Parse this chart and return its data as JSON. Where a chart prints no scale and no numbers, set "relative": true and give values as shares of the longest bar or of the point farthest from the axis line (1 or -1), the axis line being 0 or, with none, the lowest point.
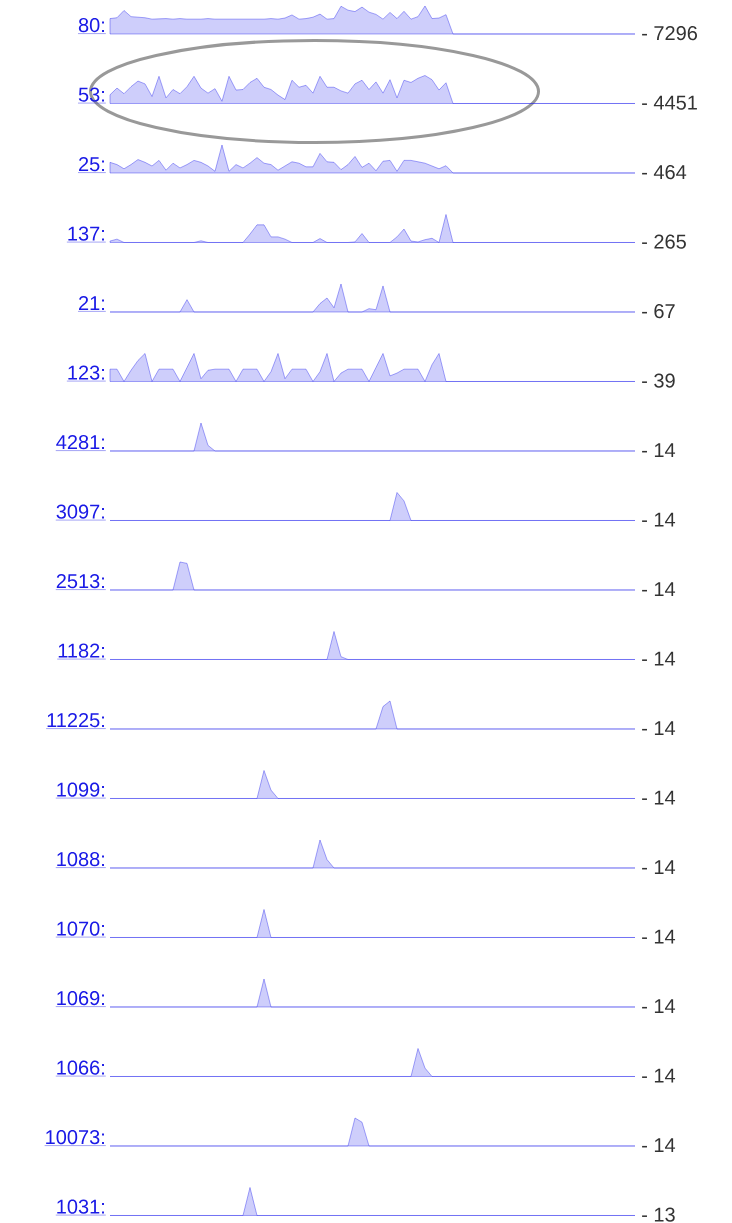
{
  "chart_data": [
    {
      "type": "area",
      "relative": true,
      "title": "80:",
      "annotations": [
        "- 7296"
      ],
      "color": "#2222ee",
      "categories": [
        null,
        null,
        null,
        null,
        null,
        null,
        null,
        null,
        null,
        null,
        null,
        null,
        null,
        null,
        null,
        null,
        null,
        null,
        null,
        null,
        null,
        null,
        null,
        null,
        null,
        null,
        null,
        null,
        null,
        null,
        null,
        null,
        null,
        null,
        null,
        null,
        null,
        null,
        null,
        null,
        null,
        null,
        null,
        null,
        null,
        null,
        null,
        null,
        null,
        null,
        null,
        null,
        null,
        null,
        null,
        null,
        null,
        null,
        null,
        null,
        null,
        null,
        null,
        null,
        null,
        null,
        null,
        null,
        null,
        null,
        null,
        null,
        null,
        null,
        null,
        null
      ],
      "values": [
        0.55,
        0.58,
        0.84,
        0.62,
        0.6,
        0.58,
        0.53,
        0.54,
        0.55,
        0.53,
        0.55,
        0.53,
        0.53,
        0.53,
        0.55,
        0.53,
        0.53,
        0.53,
        0.53,
        0.53,
        0.53,
        0.53,
        0.53,
        0.55,
        0.53,
        0.57,
        0.68,
        0.53,
        0.55,
        0.6,
        0.71,
        0.53,
        0.55,
        0.99,
        0.85,
        0.8,
        0.96,
        0.78,
        0.7,
        0.53,
        0.77,
        0.55,
        0.81,
        0.53,
        0.62,
        1,
        0.55,
        0.57,
        0.69,
        0,
        0,
        0,
        0,
        0,
        0,
        0,
        0,
        0,
        0,
        0,
        0,
        0,
        0,
        0,
        0,
        0,
        0,
        0,
        0,
        0,
        0,
        0,
        0,
        0,
        0,
        0
      ]
    },
    {
      "type": "area",
      "relative": true,
      "title": "53:",
      "annotations": [
        "- 4451"
      ],
      "color": "#2222ee",
      "categories": [
        null,
        null,
        null,
        null,
        null,
        null,
        null,
        null,
        null,
        null,
        null,
        null,
        null,
        null,
        null,
        null,
        null,
        null,
        null,
        null,
        null,
        null,
        null,
        null,
        null,
        null,
        null,
        null,
        null,
        null,
        null,
        null,
        null,
        null,
        null,
        null,
        null,
        null,
        null,
        null,
        null,
        null,
        null,
        null,
        null,
        null,
        null,
        null,
        null,
        null,
        null,
        null,
        null,
        null,
        null,
        null,
        null,
        null,
        null,
        null,
        null,
        null,
        null,
        null,
        null,
        null,
        null,
        null,
        null,
        null,
        null,
        null,
        null,
        null,
        null,
        null
      ],
      "values": [
        0.31,
        0.55,
        0.35,
        0.6,
        0.8,
        0.7,
        0.25,
        0.97,
        0.2,
        0.5,
        0.35,
        0.6,
        0.97,
        0.55,
        0.37,
        0.53,
        0.08,
        0.97,
        0.48,
        0.5,
        0.75,
        0.9,
        0.58,
        0.5,
        0.3,
        0.14,
        0.83,
        0.58,
        0.65,
        0.37,
        0.97,
        0.58,
        0.58,
        0.45,
        0.37,
        0.7,
        0.83,
        0.5,
        0.77,
        0.37,
        0.85,
        0.2,
        0.83,
        0.75,
        0.9,
        1,
        0.85,
        0.48,
        0.74,
        0,
        0,
        0,
        0,
        0,
        0,
        0,
        0,
        0,
        0,
        0,
        0,
        0,
        0,
        0,
        0,
        0,
        0,
        0,
        0,
        0,
        0,
        0,
        0,
        0,
        0,
        0
      ]
    },
    {
      "type": "area",
      "relative": true,
      "title": "25:",
      "annotations": [
        "- 464"
      ],
      "color": "#2222ee",
      "categories": [
        null,
        null,
        null,
        null,
        null,
        null,
        null,
        null,
        null,
        null,
        null,
        null,
        null,
        null,
        null,
        null,
        null,
        null,
        null,
        null,
        null,
        null,
        null,
        null,
        null,
        null,
        null,
        null,
        null,
        null,
        null,
        null,
        null,
        null,
        null,
        null,
        null,
        null,
        null,
        null,
        null,
        null,
        null,
        null,
        null,
        null,
        null,
        null,
        null,
        null,
        null,
        null,
        null,
        null,
        null,
        null,
        null,
        null,
        null,
        null,
        null,
        null,
        null,
        null,
        null,
        null,
        null,
        null,
        null,
        null,
        null,
        null,
        null,
        null,
        null,
        null
      ],
      "values": [
        0.38,
        0.3,
        0.15,
        0.3,
        0.48,
        0.38,
        0.25,
        0.45,
        0.1,
        0.35,
        0.18,
        0.3,
        0.45,
        0.38,
        0.25,
        0.06,
        1,
        0.06,
        0.3,
        0.18,
        0.35,
        0.55,
        0.35,
        0.3,
        0.1,
        0.25,
        0.4,
        0.35,
        0.22,
        0.22,
        0.7,
        0.4,
        0.38,
        0.12,
        0.3,
        0.59,
        0.2,
        0.35,
        0.08,
        0.42,
        0.45,
        0.06,
        0.45,
        0.45,
        0.4,
        0.35,
        0.25,
        0.15,
        0.26,
        0,
        0,
        0,
        0,
        0,
        0,
        0,
        0,
        0,
        0,
        0,
        0,
        0,
        0,
        0,
        0,
        0,
        0,
        0,
        0,
        0,
        0,
        0,
        0,
        0,
        0,
        0
      ]
    },
    {
      "type": "area",
      "relative": true,
      "title": "137:",
      "annotations": [
        "- 265"
      ],
      "color": "#2222ee",
      "categories": [
        null,
        null,
        null,
        null,
        null,
        null,
        null,
        null,
        null,
        null,
        null,
        null,
        null,
        null,
        null,
        null,
        null,
        null,
        null,
        null,
        null,
        null,
        null,
        null,
        null,
        null,
        null,
        null,
        null,
        null,
        null,
        null,
        null,
        null,
        null,
        null,
        null,
        null,
        null,
        null,
        null,
        null,
        null,
        null,
        null,
        null,
        null,
        null,
        null,
        null,
        null,
        null,
        null,
        null,
        null,
        null,
        null,
        null,
        null,
        null,
        null,
        null,
        null,
        null,
        null,
        null,
        null,
        null,
        null,
        null,
        null,
        null,
        null,
        null,
        null,
        null
      ],
      "values": [
        0.05,
        0.12,
        0,
        0,
        0,
        0,
        0,
        0,
        0,
        0,
        0,
        0,
        0,
        0.06,
        0,
        0,
        0,
        0,
        0,
        0,
        0.3,
        0.63,
        0.63,
        0.2,
        0.2,
        0.12,
        0,
        0,
        0,
        0,
        0.14,
        0,
        0,
        0,
        0,
        0.02,
        0.32,
        0,
        0,
        0,
        0,
        0.2,
        0.48,
        0.05,
        0.02,
        0.1,
        0.15,
        0,
        1,
        0,
        0,
        0,
        0,
        0,
        0,
        0,
        0,
        0,
        0,
        0,
        0,
        0,
        0,
        0,
        0,
        0,
        0,
        0,
        0,
        0,
        0,
        0,
        0,
        0,
        0,
        0
      ]
    },
    {
      "type": "area",
      "relative": true,
      "title": "21:",
      "annotations": [
        "- 67"
      ],
      "color": "#2222ee",
      "categories": [
        null,
        null,
        null,
        null,
        null,
        null,
        null,
        null,
        null,
        null,
        null,
        null,
        null,
        null,
        null,
        null,
        null,
        null,
        null,
        null,
        null,
        null,
        null,
        null,
        null,
        null,
        null,
        null,
        null,
        null,
        null,
        null,
        null,
        null,
        null,
        null,
        null,
        null,
        null,
        null,
        null,
        null,
        null,
        null,
        null,
        null,
        null,
        null,
        null,
        null,
        null,
        null,
        null,
        null,
        null,
        null,
        null,
        null,
        null,
        null,
        null,
        null,
        null,
        null,
        null,
        null,
        null,
        null,
        null,
        null,
        null,
        null,
        null,
        null,
        null,
        null
      ],
      "values": [
        0,
        0,
        0,
        0,
        0,
        0,
        0,
        0,
        0,
        0,
        0,
        0.44,
        0,
        0,
        0,
        0,
        0,
        0,
        0,
        0,
        0,
        0,
        0,
        0,
        0,
        0,
        0,
        0,
        0,
        0,
        0.3,
        0.5,
        0.15,
        1,
        0,
        0,
        0,
        0.12,
        0.08,
        0.93,
        0,
        0,
        0,
        0,
        0,
        0,
        0,
        0,
        0,
        0,
        0,
        0,
        0,
        0,
        0,
        0,
        0,
        0,
        0,
        0,
        0,
        0,
        0,
        0,
        0,
        0,
        0,
        0,
        0,
        0,
        0,
        0,
        0,
        0,
        0,
        0
      ]
    },
    {
      "type": "area",
      "relative": true,
      "title": "123:",
      "annotations": [
        "- 39"
      ],
      "color": "#2222ee",
      "categories": [
        null,
        null,
        null,
        null,
        null,
        null,
        null,
        null,
        null,
        null,
        null,
        null,
        null,
        null,
        null,
        null,
        null,
        null,
        null,
        null,
        null,
        null,
        null,
        null,
        null,
        null,
        null,
        null,
        null,
        null,
        null,
        null,
        null,
        null,
        null,
        null,
        null,
        null,
        null,
        null,
        null,
        null,
        null,
        null,
        null,
        null,
        null,
        null,
        null,
        null,
        null,
        null,
        null,
        null,
        null,
        null,
        null,
        null,
        null,
        null,
        null,
        null,
        null,
        null,
        null,
        null,
        null,
        null,
        null,
        null,
        null,
        null,
        null,
        null,
        null,
        null
      ],
      "values": [
        0.44,
        0.44,
        0,
        0.4,
        0.75,
        1,
        0,
        0.44,
        0.44,
        0.44,
        0,
        0.5,
        1,
        0.1,
        0.4,
        0.44,
        0.44,
        0.44,
        0,
        0.44,
        0.44,
        0.44,
        0,
        0.35,
        1,
        0.1,
        0.44,
        0.44,
        0.44,
        0,
        0.35,
        1,
        0,
        0.3,
        0.44,
        0.44,
        0.44,
        0,
        0.5,
        1,
        0.2,
        0.3,
        0.44,
        0.44,
        0.44,
        0,
        0.6,
        1,
        0,
        0,
        0,
        0,
        0,
        0,
        0,
        0,
        0,
        0,
        0,
        0,
        0,
        0,
        0,
        0,
        0,
        0,
        0,
        0,
        0,
        0,
        0,
        0,
        0,
        0,
        0,
        0
      ]
    },
    {
      "type": "area",
      "relative": true,
      "title": "4281:",
      "annotations": [
        "- 14"
      ],
      "color": "#2222ee",
      "categories": [
        null,
        null,
        null,
        null,
        null,
        null,
        null,
        null,
        null,
        null,
        null,
        null,
        null,
        null,
        null,
        null,
        null,
        null,
        null,
        null,
        null,
        null,
        null,
        null,
        null,
        null,
        null,
        null,
        null,
        null,
        null,
        null,
        null,
        null,
        null,
        null,
        null,
        null,
        null,
        null,
        null,
        null,
        null,
        null,
        null,
        null,
        null,
        null,
        null,
        null,
        null,
        null,
        null,
        null,
        null,
        null,
        null,
        null,
        null,
        null,
        null,
        null,
        null,
        null,
        null,
        null,
        null,
        null,
        null,
        null,
        null,
        null,
        null,
        null,
        null,
        null
      ],
      "values": [
        0,
        0,
        0,
        0,
        0,
        0,
        0,
        0,
        0,
        0,
        0,
        0,
        0,
        1,
        0.2,
        0,
        0,
        0,
        0,
        0,
        0,
        0,
        0,
        0,
        0,
        0,
        0,
        0,
        0,
        0,
        0,
        0,
        0,
        0,
        0,
        0,
        0,
        0,
        0,
        0,
        0,
        0,
        0,
        0,
        0,
        0,
        0,
        0,
        0,
        0,
        0,
        0,
        0,
        0,
        0,
        0,
        0,
        0,
        0,
        0,
        0,
        0,
        0,
        0,
        0,
        0,
        0,
        0,
        0,
        0,
        0,
        0,
        0,
        0,
        0,
        0
      ]
    },
    {
      "type": "area",
      "relative": true,
      "title": "3097:",
      "annotations": [
        "- 14"
      ],
      "color": "#2222ee",
      "categories": [
        null,
        null,
        null,
        null,
        null,
        null,
        null,
        null,
        null,
        null,
        null,
        null,
        null,
        null,
        null,
        null,
        null,
        null,
        null,
        null,
        null,
        null,
        null,
        null,
        null,
        null,
        null,
        null,
        null,
        null,
        null,
        null,
        null,
        null,
        null,
        null,
        null,
        null,
        null,
        null,
        null,
        null,
        null,
        null,
        null,
        null,
        null,
        null,
        null,
        null,
        null,
        null,
        null,
        null,
        null,
        null,
        null,
        null,
        null,
        null,
        null,
        null,
        null,
        null,
        null,
        null,
        null,
        null,
        null,
        null,
        null,
        null,
        null,
        null,
        null,
        null
      ],
      "values": [
        0,
        0,
        0,
        0,
        0,
        0,
        0,
        0,
        0,
        0,
        0,
        0,
        0,
        0,
        0,
        0,
        0,
        0,
        0,
        0,
        0,
        0,
        0,
        0,
        0,
        0,
        0,
        0,
        0,
        0,
        0,
        0,
        0,
        0,
        0,
        0,
        0,
        0,
        0,
        0,
        0,
        1,
        0.7,
        0,
        0,
        0,
        0,
        0,
        0,
        0,
        0,
        0,
        0,
        0,
        0,
        0,
        0,
        0,
        0,
        0,
        0,
        0,
        0,
        0,
        0,
        0,
        0,
        0,
        0,
        0,
        0,
        0,
        0,
        0,
        0,
        0
      ]
    },
    {
      "type": "area",
      "relative": true,
      "title": "2513:",
      "annotations": [
        "- 14"
      ],
      "color": "#2222ee",
      "categories": [
        null,
        null,
        null,
        null,
        null,
        null,
        null,
        null,
        null,
        null,
        null,
        null,
        null,
        null,
        null,
        null,
        null,
        null,
        null,
        null,
        null,
        null,
        null,
        null,
        null,
        null,
        null,
        null,
        null,
        null,
        null,
        null,
        null,
        null,
        null,
        null,
        null,
        null,
        null,
        null,
        null,
        null,
        null,
        null,
        null,
        null,
        null,
        null,
        null,
        null,
        null,
        null,
        null,
        null,
        null,
        null,
        null,
        null,
        null,
        null,
        null,
        null,
        null,
        null,
        null,
        null,
        null,
        null,
        null,
        null,
        null,
        null,
        null,
        null,
        null,
        null
      ],
      "values": [
        0,
        0,
        0,
        0,
        0,
        0,
        0,
        0,
        0,
        0,
        1,
        0.95,
        0,
        0,
        0,
        0,
        0,
        0,
        0,
        0,
        0,
        0,
        0,
        0,
        0,
        0,
        0,
        0,
        0,
        0,
        0,
        0,
        0,
        0,
        0,
        0,
        0,
        0,
        0,
        0,
        0,
        0,
        0,
        0,
        0,
        0,
        0,
        0,
        0,
        0,
        0,
        0,
        0,
        0,
        0,
        0,
        0,
        0,
        0,
        0,
        0,
        0,
        0,
        0,
        0,
        0,
        0,
        0,
        0,
        0,
        0,
        0,
        0,
        0,
        0,
        0
      ]
    },
    {
      "type": "area",
      "relative": true,
      "title": "1182:",
      "annotations": [
        "- 14"
      ],
      "color": "#2222ee",
      "categories": [
        null,
        null,
        null,
        null,
        null,
        null,
        null,
        null,
        null,
        null,
        null,
        null,
        null,
        null,
        null,
        null,
        null,
        null,
        null,
        null,
        null,
        null,
        null,
        null,
        null,
        null,
        null,
        null,
        null,
        null,
        null,
        null,
        null,
        null,
        null,
        null,
        null,
        null,
        null,
        null,
        null,
        null,
        null,
        null,
        null,
        null,
        null,
        null,
        null,
        null,
        null,
        null,
        null,
        null,
        null,
        null,
        null,
        null,
        null,
        null,
        null,
        null,
        null,
        null,
        null,
        null,
        null,
        null,
        null,
        null,
        null,
        null,
        null,
        null,
        null,
        null
      ],
      "values": [
        0,
        0,
        0,
        0,
        0,
        0,
        0,
        0,
        0,
        0,
        0,
        0,
        0,
        0,
        0,
        0,
        0,
        0,
        0,
        0,
        0,
        0,
        0,
        0,
        0,
        0,
        0,
        0,
        0,
        0,
        0,
        0,
        1,
        0.1,
        0,
        0,
        0,
        0,
        0,
        0,
        0,
        0,
        0,
        0,
        0,
        0,
        0,
        0,
        0,
        0,
        0,
        0,
        0,
        0,
        0,
        0,
        0,
        0,
        0,
        0,
        0,
        0,
        0,
        0,
        0,
        0,
        0,
        0,
        0,
        0,
        0,
        0,
        0,
        0,
        0,
        0
      ]
    },
    {
      "type": "area",
      "relative": true,
      "title": "11225:",
      "annotations": [
        "- 14"
      ],
      "color": "#2222ee",
      "categories": [
        null,
        null,
        null,
        null,
        null,
        null,
        null,
        null,
        null,
        null,
        null,
        null,
        null,
        null,
        null,
        null,
        null,
        null,
        null,
        null,
        null,
        null,
        null,
        null,
        null,
        null,
        null,
        null,
        null,
        null,
        null,
        null,
        null,
        null,
        null,
        null,
        null,
        null,
        null,
        null,
        null,
        null,
        null,
        null,
        null,
        null,
        null,
        null,
        null,
        null,
        null,
        null,
        null,
        null,
        null,
        null,
        null,
        null,
        null,
        null,
        null,
        null,
        null,
        null,
        null,
        null,
        null,
        null,
        null,
        null,
        null,
        null,
        null,
        null,
        null,
        null
      ],
      "values": [
        0,
        0,
        0,
        0,
        0,
        0,
        0,
        0,
        0,
        0,
        0,
        0,
        0,
        0,
        0,
        0,
        0,
        0,
        0,
        0,
        0,
        0,
        0,
        0,
        0,
        0,
        0,
        0,
        0,
        0,
        0,
        0,
        0,
        0,
        0,
        0,
        0,
        0,
        0,
        0.8,
        1,
        0,
        0,
        0,
        0,
        0,
        0,
        0,
        0,
        0,
        0,
        0,
        0,
        0,
        0,
        0,
        0,
        0,
        0,
        0,
        0,
        0,
        0,
        0,
        0,
        0,
        0,
        0,
        0,
        0,
        0,
        0,
        0,
        0,
        0,
        0
      ]
    },
    {
      "type": "area",
      "relative": true,
      "title": "1099:",
      "annotations": [
        "- 14"
      ],
      "color": "#2222ee",
      "categories": [
        null,
        null,
        null,
        null,
        null,
        null,
        null,
        null,
        null,
        null,
        null,
        null,
        null,
        null,
        null,
        null,
        null,
        null,
        null,
        null,
        null,
        null,
        null,
        null,
        null,
        null,
        null,
        null,
        null,
        null,
        null,
        null,
        null,
        null,
        null,
        null,
        null,
        null,
        null,
        null,
        null,
        null,
        null,
        null,
        null,
        null,
        null,
        null,
        null,
        null,
        null,
        null,
        null,
        null,
        null,
        null,
        null,
        null,
        null,
        null,
        null,
        null,
        null,
        null,
        null,
        null,
        null,
        null,
        null,
        null,
        null,
        null,
        null,
        null,
        null,
        null
      ],
      "values": [
        0,
        0,
        0,
        0,
        0,
        0,
        0,
        0,
        0,
        0,
        0,
        0,
        0,
        0,
        0,
        0,
        0,
        0,
        0,
        0,
        0,
        0,
        1,
        0.3,
        0,
        0,
        0,
        0,
        0,
        0,
        0,
        0,
        0,
        0,
        0,
        0,
        0,
        0,
        0,
        0,
        0,
        0,
        0,
        0,
        0,
        0,
        0,
        0,
        0,
        0,
        0,
        0,
        0,
        0,
        0,
        0,
        0,
        0,
        0,
        0,
        0,
        0,
        0,
        0,
        0,
        0,
        0,
        0,
        0,
        0,
        0,
        0,
        0,
        0,
        0,
        0
      ]
    },
    {
      "type": "area",
      "relative": true,
      "title": "1088:",
      "annotations": [
        "- 14"
      ],
      "color": "#2222ee",
      "categories": [
        null,
        null,
        null,
        null,
        null,
        null,
        null,
        null,
        null,
        null,
        null,
        null,
        null,
        null,
        null,
        null,
        null,
        null,
        null,
        null,
        null,
        null,
        null,
        null,
        null,
        null,
        null,
        null,
        null,
        null,
        null,
        null,
        null,
        null,
        null,
        null,
        null,
        null,
        null,
        null,
        null,
        null,
        null,
        null,
        null,
        null,
        null,
        null,
        null,
        null,
        null,
        null,
        null,
        null,
        null,
        null,
        null,
        null,
        null,
        null,
        null,
        null,
        null,
        null,
        null,
        null,
        null,
        null,
        null,
        null,
        null,
        null,
        null,
        null,
        null,
        null
      ],
      "values": [
        0,
        0,
        0,
        0,
        0,
        0,
        0,
        0,
        0,
        0,
        0,
        0,
        0,
        0,
        0,
        0,
        0,
        0,
        0,
        0,
        0,
        0,
        0,
        0,
        0,
        0,
        0,
        0,
        0,
        0,
        1,
        0.3,
        0,
        0,
        0,
        0,
        0,
        0,
        0,
        0,
        0,
        0,
        0,
        0,
        0,
        0,
        0,
        0,
        0,
        0,
        0,
        0,
        0,
        0,
        0,
        0,
        0,
        0,
        0,
        0,
        0,
        0,
        0,
        0,
        0,
        0,
        0,
        0,
        0,
        0,
        0,
        0,
        0,
        0,
        0,
        0
      ]
    },
    {
      "type": "area",
      "relative": true,
      "title": "1070:",
      "annotations": [
        "- 14"
      ],
      "color": "#2222ee",
      "categories": [
        null,
        null,
        null,
        null,
        null,
        null,
        null,
        null,
        null,
        null,
        null,
        null,
        null,
        null,
        null,
        null,
        null,
        null,
        null,
        null,
        null,
        null,
        null,
        null,
        null,
        null,
        null,
        null,
        null,
        null,
        null,
        null,
        null,
        null,
        null,
        null,
        null,
        null,
        null,
        null,
        null,
        null,
        null,
        null,
        null,
        null,
        null,
        null,
        null,
        null,
        null,
        null,
        null,
        null,
        null,
        null,
        null,
        null,
        null,
        null,
        null,
        null,
        null,
        null,
        null,
        null,
        null,
        null,
        null,
        null,
        null,
        null,
        null,
        null,
        null,
        null
      ],
      "values": [
        0,
        0,
        0,
        0,
        0,
        0,
        0,
        0,
        0,
        0,
        0,
        0,
        0,
        0,
        0,
        0,
        0,
        0,
        0,
        0,
        0,
        0,
        1,
        0,
        0,
        0,
        0,
        0,
        0,
        0,
        0,
        0,
        0,
        0,
        0,
        0,
        0,
        0,
        0,
        0,
        0,
        0,
        0,
        0,
        0,
        0,
        0,
        0,
        0,
        0,
        0,
        0,
        0,
        0,
        0,
        0,
        0,
        0,
        0,
        0,
        0,
        0,
        0,
        0,
        0,
        0,
        0,
        0,
        0,
        0,
        0,
        0,
        0,
        0,
        0,
        0
      ]
    },
    {
      "type": "area",
      "relative": true,
      "title": "1069:",
      "annotations": [
        "- 14"
      ],
      "color": "#2222ee",
      "categories": [
        null,
        null,
        null,
        null,
        null,
        null,
        null,
        null,
        null,
        null,
        null,
        null,
        null,
        null,
        null,
        null,
        null,
        null,
        null,
        null,
        null,
        null,
        null,
        null,
        null,
        null,
        null,
        null,
        null,
        null,
        null,
        null,
        null,
        null,
        null,
        null,
        null,
        null,
        null,
        null,
        null,
        null,
        null,
        null,
        null,
        null,
        null,
        null,
        null,
        null,
        null,
        null,
        null,
        null,
        null,
        null,
        null,
        null,
        null,
        null,
        null,
        null,
        null,
        null,
        null,
        null,
        null,
        null,
        null,
        null,
        null,
        null,
        null,
        null,
        null,
        null
      ],
      "values": [
        0,
        0,
        0,
        0,
        0,
        0,
        0,
        0,
        0,
        0,
        0,
        0,
        0,
        0,
        0,
        0,
        0,
        0,
        0,
        0,
        0,
        0,
        1,
        0,
        0,
        0,
        0,
        0,
        0,
        0,
        0,
        0,
        0,
        0,
        0,
        0,
        0,
        0,
        0,
        0,
        0,
        0,
        0,
        0,
        0,
        0,
        0,
        0,
        0,
        0,
        0,
        0,
        0,
        0,
        0,
        0,
        0,
        0,
        0,
        0,
        0,
        0,
        0,
        0,
        0,
        0,
        0,
        0,
        0,
        0,
        0,
        0,
        0,
        0,
        0,
        0
      ]
    },
    {
      "type": "area",
      "relative": true,
      "title": "1066:",
      "annotations": [
        "- 14"
      ],
      "color": "#2222ee",
      "categories": [
        null,
        null,
        null,
        null,
        null,
        null,
        null,
        null,
        null,
        null,
        null,
        null,
        null,
        null,
        null,
        null,
        null,
        null,
        null,
        null,
        null,
        null,
        null,
        null,
        null,
        null,
        null,
        null,
        null,
        null,
        null,
        null,
        null,
        null,
        null,
        null,
        null,
        null,
        null,
        null,
        null,
        null,
        null,
        null,
        null,
        null,
        null,
        null,
        null,
        null,
        null,
        null,
        null,
        null,
        null,
        null,
        null,
        null,
        null,
        null,
        null,
        null,
        null,
        null,
        null,
        null,
        null,
        null,
        null,
        null,
        null,
        null,
        null,
        null,
        null,
        null
      ],
      "values": [
        0,
        0,
        0,
        0,
        0,
        0,
        0,
        0,
        0,
        0,
        0,
        0,
        0,
        0,
        0,
        0,
        0,
        0,
        0,
        0,
        0,
        0,
        0,
        0,
        0,
        0,
        0,
        0,
        0,
        0,
        0,
        0,
        0,
        0,
        0,
        0,
        0,
        0,
        0,
        0,
        0,
        0,
        0,
        0,
        1,
        0.3,
        0,
        0,
        0,
        0,
        0,
        0,
        0,
        0,
        0,
        0,
        0,
        0,
        0,
        0,
        0,
        0,
        0,
        0,
        0,
        0,
        0,
        0,
        0,
        0,
        0,
        0,
        0,
        0,
        0,
        0
      ]
    },
    {
      "type": "area",
      "relative": true,
      "title": "10073:",
      "annotations": [
        "- 14"
      ],
      "color": "#2222ee",
      "categories": [
        null,
        null,
        null,
        null,
        null,
        null,
        null,
        null,
        null,
        null,
        null,
        null,
        null,
        null,
        null,
        null,
        null,
        null,
        null,
        null,
        null,
        null,
        null,
        null,
        null,
        null,
        null,
        null,
        null,
        null,
        null,
        null,
        null,
        null,
        null,
        null,
        null,
        null,
        null,
        null,
        null,
        null,
        null,
        null,
        null,
        null,
        null,
        null,
        null,
        null,
        null,
        null,
        null,
        null,
        null,
        null,
        null,
        null,
        null,
        null,
        null,
        null,
        null,
        null,
        null,
        null,
        null,
        null,
        null,
        null,
        null,
        null,
        null,
        null,
        null,
        null
      ],
      "values": [
        0,
        0,
        0,
        0,
        0,
        0,
        0,
        0,
        0,
        0,
        0,
        0,
        0,
        0,
        0,
        0,
        0,
        0,
        0,
        0,
        0,
        0,
        0,
        0,
        0,
        0,
        0,
        0,
        0,
        0,
        0,
        0,
        0,
        0,
        0,
        1,
        0.85,
        0,
        0,
        0,
        0,
        0,
        0,
        0,
        0,
        0,
        0,
        0,
        0,
        0,
        0,
        0,
        0,
        0,
        0,
        0,
        0,
        0,
        0,
        0,
        0,
        0,
        0,
        0,
        0,
        0,
        0,
        0,
        0,
        0,
        0,
        0,
        0,
        0,
        0,
        0
      ]
    },
    {
      "type": "area",
      "relative": true,
      "title": "1031:",
      "annotations": [
        "- 13"
      ],
      "color": "#2222ee",
      "categories": [
        null,
        null,
        null,
        null,
        null,
        null,
        null,
        null,
        null,
        null,
        null,
        null,
        null,
        null,
        null,
        null,
        null,
        null,
        null,
        null,
        null,
        null,
        null,
        null,
        null,
        null,
        null,
        null,
        null,
        null,
        null,
        null,
        null,
        null,
        null,
        null,
        null,
        null,
        null,
        null,
        null,
        null,
        null,
        null,
        null,
        null,
        null,
        null,
        null,
        null,
        null,
        null,
        null,
        null,
        null,
        null,
        null,
        null,
        null,
        null,
        null,
        null,
        null,
        null,
        null,
        null,
        null,
        null,
        null,
        null,
        null,
        null,
        null,
        null,
        null,
        null
      ],
      "values": [
        0,
        0,
        0,
        0,
        0,
        0,
        0,
        0,
        0,
        0,
        0,
        0,
        0,
        0,
        0,
        0,
        0,
        0,
        0,
        0,
        1,
        0,
        0,
        0,
        0,
        0,
        0,
        0,
        0,
        0,
        0,
        0,
        0,
        0,
        0,
        0,
        0,
        0,
        0,
        0,
        0,
        0,
        0,
        0,
        0,
        0,
        0,
        0,
        0,
        0,
        0,
        0,
        0,
        0,
        0,
        0,
        0,
        0,
        0,
        0,
        0,
        0,
        0,
        0,
        0,
        0,
        0,
        0,
        0,
        0,
        0,
        0,
        0,
        0,
        0,
        0
      ]
    }
  ]
}
